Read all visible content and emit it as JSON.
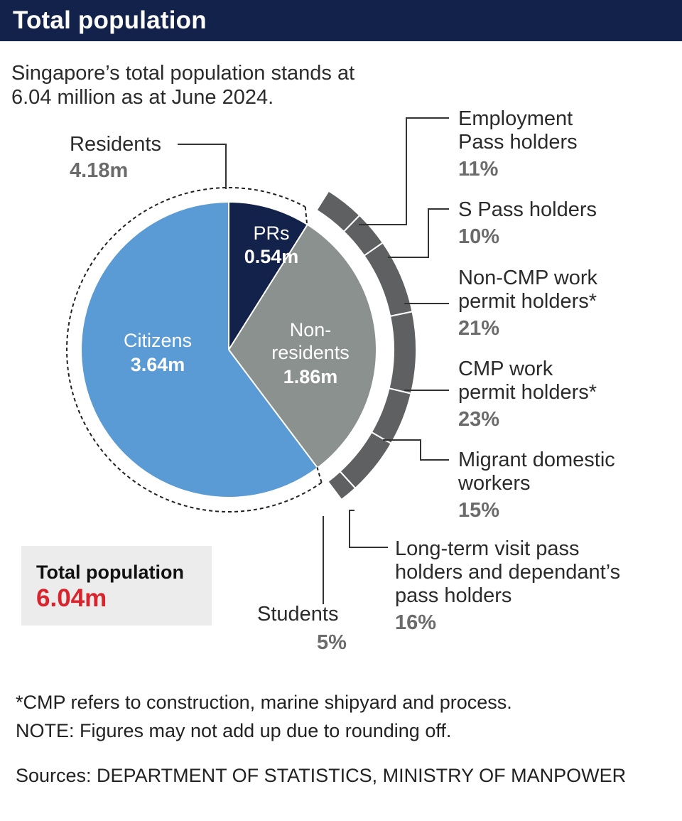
{
  "header": {
    "title": "Total population"
  },
  "subtitle": "Singapore’s total population stands at 6.04 million as at June 2024.",
  "colors": {
    "header_bg": "#13224b",
    "citizens": "#5b9bd5",
    "prs": "#13224b",
    "non_residents": "#8b918f",
    "ring": "#5f6062",
    "total_value": "#d9232d"
  },
  "chart_data": {
    "type": "pie",
    "title": "Total population",
    "residents": {
      "label": "Residents",
      "value_label": "4.18m",
      "value": 4.18
    },
    "pie": [
      {
        "key": "citizens",
        "name": "Citizens",
        "value_label": "3.64m",
        "value": 3.64
      },
      {
        "key": "prs",
        "name": "PRs",
        "value_label": "0.54m",
        "value": 0.54
      },
      {
        "key": "non_residents",
        "name_line1": "Non-",
        "name_line2": "residents",
        "value_label": "1.86m",
        "value": 1.86
      }
    ],
    "non_resident_breakdown": [
      {
        "label_lines": [
          "Employment",
          "Pass holders"
        ],
        "pct_label": "11%",
        "pct": 11
      },
      {
        "label_lines": [
          "S Pass holders"
        ],
        "pct_label": "10%",
        "pct": 10
      },
      {
        "label_lines": [
          "Non-CMP work",
          "permit holders*"
        ],
        "pct_label": "21%",
        "pct": 21
      },
      {
        "label_lines": [
          "CMP work",
          "permit holders*"
        ],
        "pct_label": "23%",
        "pct": 23
      },
      {
        "label_lines": [
          "Migrant domestic",
          "workers"
        ],
        "pct_label": "15%",
        "pct": 15
      },
      {
        "label_lines": [
          "Long-term visit pass",
          "holders and dependant’s",
          "pass holders"
        ],
        "pct_label": "16%",
        "pct": 16
      },
      {
        "label_lines": [
          "Students"
        ],
        "pct_label": "5%",
        "pct": 5
      }
    ]
  },
  "total_box": {
    "label": "Total population",
    "value": "6.04m"
  },
  "notes": [
    "*CMP refers to construction, marine shipyard and process.",
    "NOTE: Figures may not add up due to rounding off."
  ],
  "sources": "Sources: DEPARTMENT OF STATISTICS, MINISTRY OF MANPOWER"
}
